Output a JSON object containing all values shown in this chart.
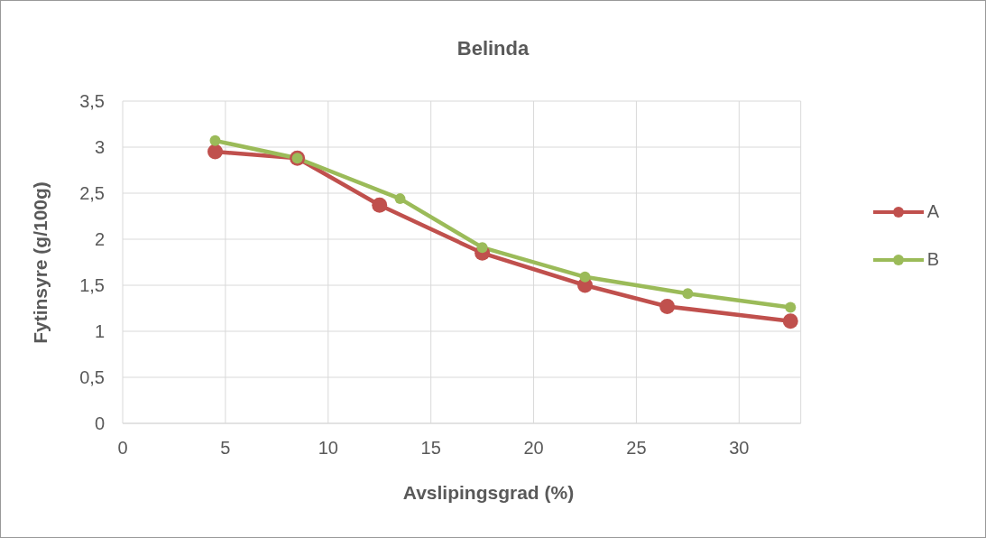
{
  "chart_data": {
    "type": "line",
    "title": "Belinda",
    "xlabel": "Avslipingsgrad (%)",
    "ylabel": "Fytinsyre (g/100g)",
    "series": [
      {
        "name": "A",
        "color": "#c0504d",
        "x": [
          4.5,
          8.5,
          12.5,
          17.5,
          22.5,
          26.5,
          32.5
        ],
        "values": [
          2.95,
          2.88,
          2.37,
          1.85,
          1.5,
          1.27,
          1.11
        ]
      },
      {
        "name": "B",
        "color": "#9bbb59",
        "x": [
          4.5,
          8.5,
          13.5,
          17.5,
          22.5,
          27.5,
          32.5
        ],
        "values": [
          3.07,
          2.88,
          2.44,
          1.91,
          1.59,
          1.41,
          1.26
        ]
      }
    ],
    "xlim": [
      0,
      33
    ],
    "xticks": [
      0,
      5,
      10,
      15,
      20,
      25,
      30
    ],
    "ylim": [
      0,
      3.5
    ],
    "yticks": [
      {
        "value": 0,
        "label": "0"
      },
      {
        "value": 0.5,
        "label": "0,5"
      },
      {
        "value": 1,
        "label": "1"
      },
      {
        "value": 1.5,
        "label": "1,5"
      },
      {
        "value": 2,
        "label": "2"
      },
      {
        "value": 2.5,
        "label": "2,5"
      },
      {
        "value": 3,
        "label": "3"
      },
      {
        "value": 3.5,
        "label": "3,5"
      }
    ],
    "grid": true,
    "legend": "right",
    "marker": "circle",
    "line_style": "solid"
  }
}
